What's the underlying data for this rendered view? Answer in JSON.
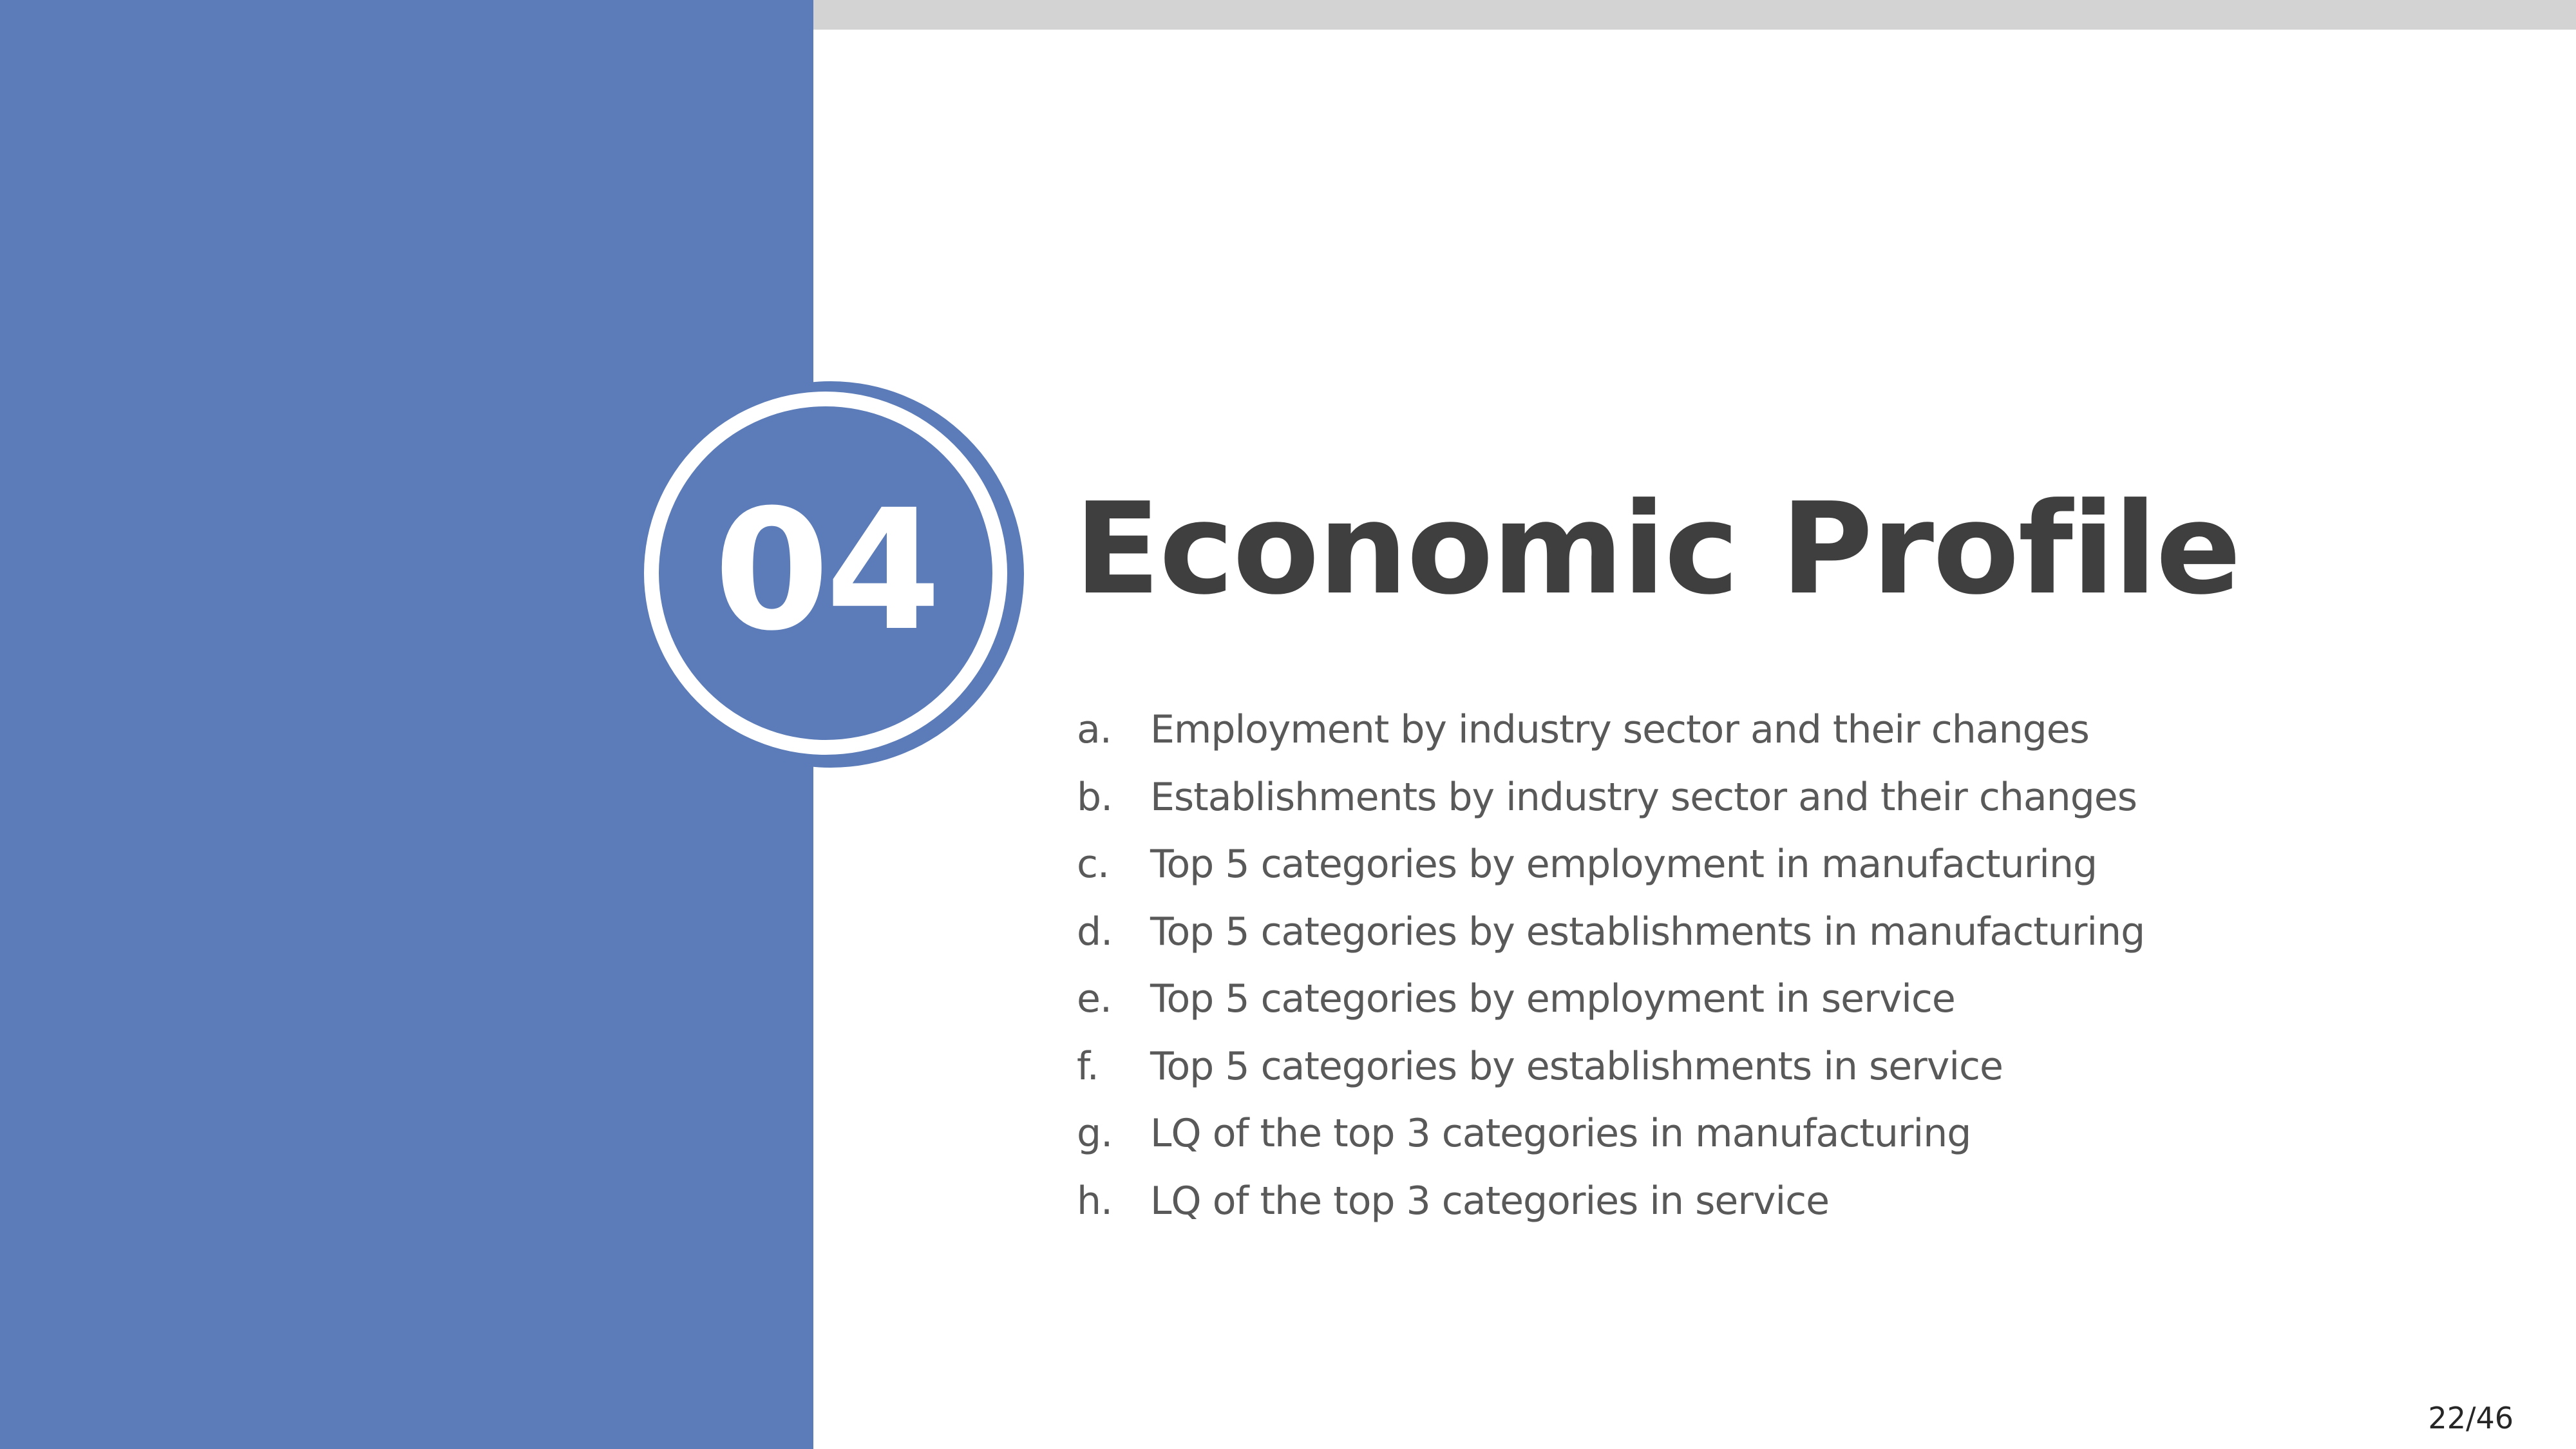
{
  "section": {
    "number": "04",
    "title": "Economic Profile"
  },
  "agenda": {
    "items": [
      {
        "marker": "a.",
        "text": "Employment by industry sector and their changes"
      },
      {
        "marker": "b.",
        "text": "Establishments by industry sector and their changes"
      },
      {
        "marker": "c.",
        "text": "Top 5 categories by employment in manufacturing"
      },
      {
        "marker": "d.",
        "text": "Top 5 categories by establishments in manufacturing"
      },
      {
        "marker": "e.",
        "text": "Top 5 categories by employment in service"
      },
      {
        "marker": "f.",
        "text": "Top 5 categories by establishments in service"
      },
      {
        "marker": "g.",
        "text": "LQ of the top 3 categories in manufacturing"
      },
      {
        "marker": "h.",
        "text": "LQ of the top 3 categories in service"
      }
    ]
  },
  "footer": {
    "page_number": "22/46"
  },
  "colors": {
    "accent": "#5b7cb8",
    "top_bar": "#d3d3d3",
    "title_text": "#3f3f3f",
    "body_text": "#595959"
  }
}
